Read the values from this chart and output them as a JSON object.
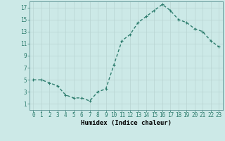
{
  "x": [
    0,
    1,
    2,
    3,
    4,
    5,
    6,
    7,
    8,
    9,
    10,
    11,
    12,
    13,
    14,
    15,
    16,
    17,
    18,
    19,
    20,
    21,
    22,
    23
  ],
  "y": [
    5,
    5,
    4.5,
    4,
    2.5,
    2,
    2,
    1.5,
    3,
    3.5,
    7.5,
    11.5,
    12.5,
    14.5,
    15.5,
    16.5,
    17.5,
    16.5,
    15,
    14.5,
    13.5,
    13,
    11.5,
    10.5
  ],
  "line_color": "#2e7d6e",
  "marker": "+",
  "bg_color": "#cce9e7",
  "grid_color": "#b8d4d2",
  "xlabel": "Humidex (Indice chaleur)",
  "xlim": [
    -0.5,
    23.5
  ],
  "ylim": [
    0,
    18
  ],
  "yticks": [
    1,
    3,
    5,
    7,
    9,
    11,
    13,
    15,
    17
  ],
  "xticks": [
    0,
    1,
    2,
    3,
    4,
    5,
    6,
    7,
    8,
    9,
    10,
    11,
    12,
    13,
    14,
    15,
    16,
    17,
    18,
    19,
    20,
    21,
    22,
    23
  ],
  "xtick_labels": [
    "0",
    "1",
    "2",
    "3",
    "4",
    "5",
    "6",
    "7",
    "8",
    "9",
    "10",
    "11",
    "12",
    "13",
    "14",
    "15",
    "16",
    "17",
    "18",
    "19",
    "20",
    "21",
    "22",
    "23"
  ],
  "xlabel_fontsize": 6.5,
  "tick_fontsize": 5.5,
  "linewidth": 1.0,
  "markersize": 3.5
}
